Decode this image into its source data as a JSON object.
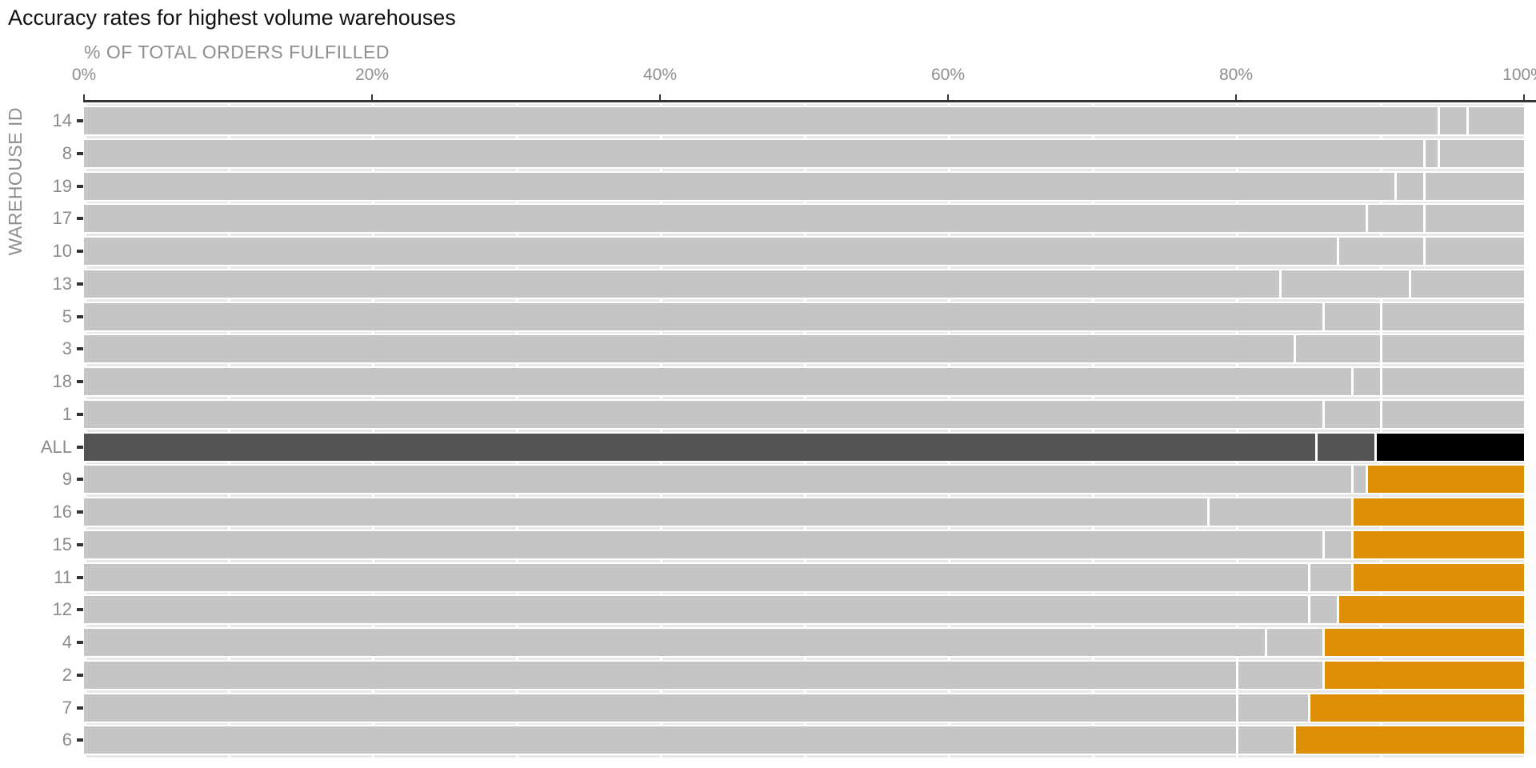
{
  "title": "Accuracy rates for highest volume warehouses",
  "chart_data": {
    "type": "bar",
    "variant": "horizontal-stacked",
    "title": "Accuracy rates for highest volume warehouses",
    "xlabel": "% OF TOTAL ORDERS FULFILLED",
    "ylabel": "WAREHOUSE ID",
    "xlim": [
      0,
      100
    ],
    "x_ticks": [
      {
        "label": "0%",
        "value": 0
      },
      {
        "label": "20%",
        "value": 20
      },
      {
        "label": "40%",
        "value": 40
      },
      {
        "label": "60%",
        "value": 60
      },
      {
        "label": "80%",
        "value": 80
      },
      {
        "label": "100%",
        "value": 100
      }
    ],
    "gridlines_every_pct": 10,
    "grid_on": true,
    "legend_position": "none",
    "segment_note": "Each bar has 3 stacked segments; values are cumulative % boundaries (seg1_end, seg2_end, 100). Third segment is highlighted orange for warehouses below the ALL average, black for the ALL row, gray otherwise.",
    "rows": [
      {
        "id": "14",
        "seg1_end": 94,
        "seg2_end": 96,
        "group": "above"
      },
      {
        "id": "8",
        "seg1_end": 93,
        "seg2_end": 94,
        "group": "above"
      },
      {
        "id": "19",
        "seg1_end": 91,
        "seg2_end": 93,
        "group": "above"
      },
      {
        "id": "17",
        "seg1_end": 89,
        "seg2_end": 93,
        "group": "above"
      },
      {
        "id": "10",
        "seg1_end": 87,
        "seg2_end": 93,
        "group": "above"
      },
      {
        "id": "13",
        "seg1_end": 83,
        "seg2_end": 92,
        "group": "above"
      },
      {
        "id": "5",
        "seg1_end": 86,
        "seg2_end": 90,
        "group": "above"
      },
      {
        "id": "3",
        "seg1_end": 84,
        "seg2_end": 90,
        "group": "above"
      },
      {
        "id": "18",
        "seg1_end": 88,
        "seg2_end": 90,
        "group": "above"
      },
      {
        "id": "1",
        "seg1_end": 86,
        "seg2_end": 90,
        "group": "above"
      },
      {
        "id": "ALL",
        "seg1_end": 85.5,
        "seg2_end": 89.6,
        "group": "all"
      },
      {
        "id": "9",
        "seg1_end": 88,
        "seg2_end": 89,
        "group": "below"
      },
      {
        "id": "16",
        "seg1_end": 78,
        "seg2_end": 88,
        "group": "below"
      },
      {
        "id": "15",
        "seg1_end": 86,
        "seg2_end": 88,
        "group": "below"
      },
      {
        "id": "11",
        "seg1_end": 85,
        "seg2_end": 88,
        "group": "below"
      },
      {
        "id": "12",
        "seg1_end": 85,
        "seg2_end": 87,
        "group": "below"
      },
      {
        "id": "4",
        "seg1_end": 82,
        "seg2_end": 86,
        "group": "below"
      },
      {
        "id": "2",
        "seg1_end": 80,
        "seg2_end": 86,
        "group": "below"
      },
      {
        "id": "7",
        "seg1_end": 80,
        "seg2_end": 85,
        "group": "below"
      },
      {
        "id": "6",
        "seg1_end": 80,
        "seg2_end": 84,
        "group": "below"
      }
    ],
    "colors": {
      "bar_gray": "#c5c5c5",
      "all_dark_gray": "#545454",
      "all_black": "#000000",
      "highlight_orange": "#de8f05",
      "axis_text_gray": "#8e8e8e",
      "axis_line_dark": "#333333",
      "panel_gap_gray": "#e7e7e7",
      "gridline_white": "#ffffff"
    }
  }
}
